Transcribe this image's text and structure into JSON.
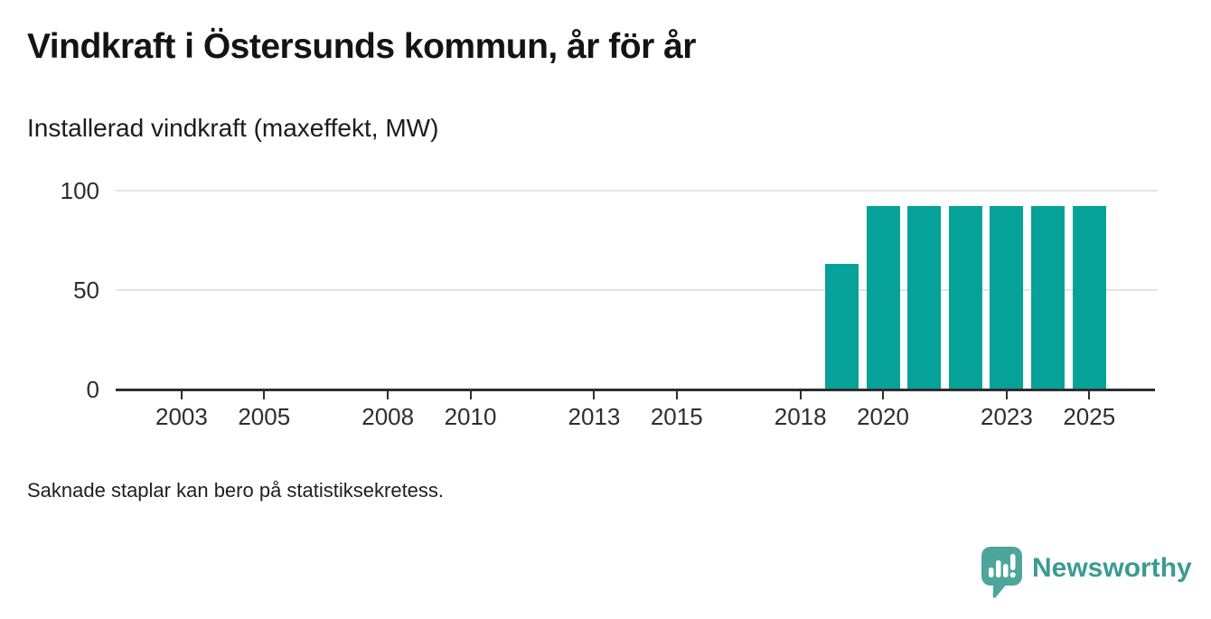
{
  "header": {
    "title": "Vindkraft i Östersunds kommun, år för år",
    "subtitle": "Installerad vindkraft (maxeffekt, MW)"
  },
  "footnote": "Saknade staplar kan bero på statistiksekretess.",
  "brand": {
    "name": "Newsworthy",
    "icon": "newsworthy-speech-bubble-chart-icon",
    "text_color": "#3a9b92",
    "icon_color": "#4ca69c"
  },
  "chart_data": {
    "type": "bar",
    "title": "Vindkraft i Östersunds kommun, år för år",
    "ylabel": "Installerad vindkraft (maxeffekt, MW)",
    "xlabel": "",
    "categories": [
      2019,
      2020,
      2021,
      2022,
      2023,
      2024,
      2025
    ],
    "values": [
      63,
      92,
      92,
      92,
      92,
      92,
      92
    ],
    "x_axis": {
      "tick_years": [
        2003,
        2005,
        2008,
        2010,
        2013,
        2015,
        2018,
        2020,
        2023,
        2025
      ],
      "range": [
        2001,
        2026
      ]
    },
    "y_axis": {
      "ticks": [
        0,
        50,
        100
      ],
      "range": [
        0,
        100
      ]
    },
    "bar_color": "#06a29a",
    "grid": "horizontal",
    "legend": "none",
    "note": "Saknade staplar kan bero på statistiksekretess."
  }
}
